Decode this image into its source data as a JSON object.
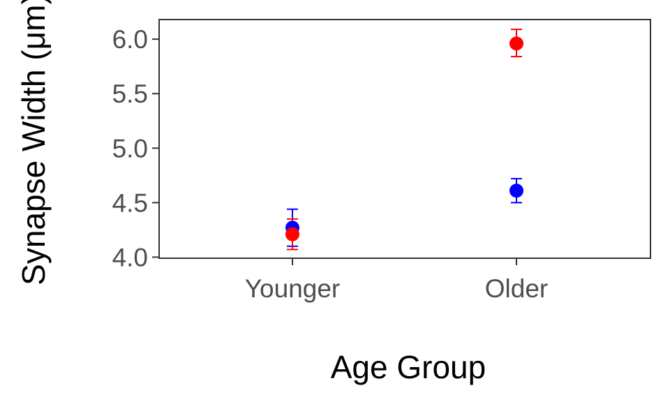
{
  "chart_data": {
    "type": "scatter",
    "title": "",
    "xlabel": "Age Group",
    "ylabel": "Synapse Width (μm)",
    "categories": [
      "Younger",
      "Older"
    ],
    "yticks": [
      "4.0",
      "4.5",
      "5.0",
      "5.5",
      "6.0"
    ],
    "ylim": [
      3.99,
      6.18
    ],
    "grid": false,
    "legend": "none",
    "series": [
      {
        "color": "#0000ff",
        "values": [
          4.27,
          4.61
        ],
        "error_low": [
          4.1,
          4.5
        ],
        "error_high": [
          4.44,
          4.72
        ]
      },
      {
        "color": "#ff0000",
        "values": [
          4.21,
          5.96
        ],
        "error_low": [
          4.07,
          5.84
        ],
        "error_high": [
          4.35,
          6.09
        ]
      }
    ]
  }
}
